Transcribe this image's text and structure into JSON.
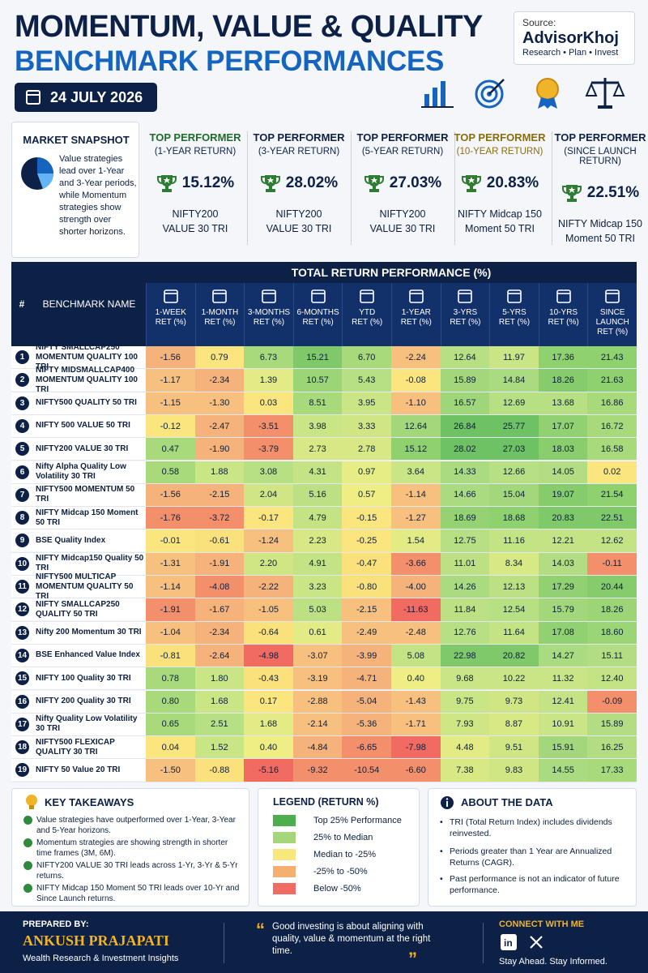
{
  "header": {
    "title_line1": "MOMENTUM, VALUE & QUALITY",
    "title_line2": "BENCHMARK PERFORMANCES",
    "date": "24 JULY 2026",
    "source_label": "Source:",
    "source_brand": "AdvisorKhoj",
    "source_tagline": "Research • Plan • Invest",
    "icons": [
      "bar-chart-icon",
      "target-icon",
      "medal-icon",
      "scales-icon"
    ]
  },
  "snapshot": {
    "title": "MARKET SNAPSHOT",
    "text": "Value strategies lead over 1-Year and 3-Year periods, while Momentum strategies show strength over shorter horizons."
  },
  "top_performers": [
    {
      "heading": "TOP PERFORMER",
      "period": "(1-YEAR RETURN)",
      "value": "15.12%",
      "name_line1": "NIFTY200",
      "name_line2": "VALUE 30 TRI"
    },
    {
      "heading": "TOP PERFORMER",
      "period": "(3-YEAR RETURN)",
      "value": "28.02%",
      "name_line1": "NIFTY200",
      "name_line2": "VALUE 30 TRI"
    },
    {
      "heading": "TOP PERFORMER",
      "period": "(5-YEAR RETURN)",
      "value": "27.03%",
      "name_line1": "NIFTY200",
      "name_line2": "VALUE 30 TRI"
    },
    {
      "heading": "TOP PERFORMER",
      "period": "(10-YEAR RETURN)",
      "value": "20.83%",
      "name_line1": "NIFTY Midcap 150",
      "name_line2": "Moment 50 TRI"
    },
    {
      "heading": "TOP PERFORMER",
      "period": "(SINCE LAUNCH RETURN)",
      "value": "22.51%",
      "name_line1": "NIFTY Midcap 150",
      "name_line2": "Moment 50 TRI"
    }
  ],
  "table": {
    "num_header": "#",
    "name_header": "BENCHMARK NAME",
    "group_header": "TOTAL RETURN PERFORMANCE (%)",
    "columns": [
      {
        "l1": "1-WEEK",
        "l2": "RET (%)",
        "icon": "calendar-icon"
      },
      {
        "l1": "1-MONTH",
        "l2": "RET (%)",
        "icon": "calendar-30-icon"
      },
      {
        "l1": "3-MONTHS",
        "l2": "RET (%)",
        "icon": "calendar-90-icon"
      },
      {
        "l1": "6-MONTHS",
        "l2": "RET (%)",
        "icon": "calendar-180-icon"
      },
      {
        "l1": "YTD",
        "l2": "RET (%)",
        "icon": "bar-chart-icon"
      },
      {
        "l1": "1-YEAR",
        "l2": "RET (%)",
        "icon": "calendar-icon"
      },
      {
        "l1": "3-YRS",
        "l2": "RET (%)",
        "icon": "bar-chart-icon"
      },
      {
        "l1": "5-YRS",
        "l2": "RET (%)",
        "icon": "trend-up-icon"
      },
      {
        "l1": "10-YRS",
        "l2": "RET (%)",
        "icon": "trophy-icon"
      },
      {
        "l1": "SINCE LAUNCH",
        "l2": "RET (%)",
        "icon": "rocket-icon"
      }
    ],
    "rows": [
      {
        "n": "1",
        "name": "NIFTY SMALLCAP250 MOMENTUM QUALITY 100 TRI",
        "v": [
          "-1.56",
          "0.79",
          "6.73",
          "15.21",
          "6.70",
          "-2.24",
          "12.64",
          "11.97",
          "17.36",
          "21.43"
        ],
        "c": [
          "#f5b27a",
          "#fae57f",
          "#a8d97a",
          "#7fc96b",
          "#a8d97a",
          "#f7c07e",
          "#b7df84",
          "#c9e585",
          "#8fd06f",
          "#8fd06f"
        ]
      },
      {
        "n": "2",
        "name": "NIFTY MIDSMALLCAP400 MOMENTUM QUALITY 100 TRI",
        "v": [
          "-1.17",
          "-2.34",
          "1.39",
          "10.57",
          "5.43",
          "-0.08",
          "15.89",
          "14.84",
          "18.26",
          "21.63"
        ],
        "c": [
          "#f7c07e",
          "#f5b27a",
          "#e3ec84",
          "#9bd576",
          "#b7df84",
          "#fae57f",
          "#a4d77c",
          "#aadb80",
          "#86cc6c",
          "#8fd06f"
        ]
      },
      {
        "n": "3",
        "name": "NIFTY500 QUALITY 50 TRI",
        "v": [
          "-1.15",
          "-1.30",
          "0.03",
          "8.51",
          "3.95",
          "-1.10",
          "16.57",
          "12.69",
          "13.68",
          "16.86"
        ],
        "c": [
          "#f7c07e",
          "#f7c07e",
          "#fae57f",
          "#a8d97a",
          "#c9e585",
          "#f7c07e",
          "#a0d67a",
          "#b7df84",
          "#b7df84",
          "#a8d97a"
        ]
      },
      {
        "n": "4",
        "name": "NIFTY 500 VALUE 50 TRI",
        "v": [
          "-0.12",
          "-2.47",
          "-3.51",
          "3.98",
          "3.33",
          "12.64",
          "26.84",
          "25.77",
          "17.07",
          "16.72"
        ],
        "c": [
          "#fae57f",
          "#f5b27a",
          "#f48f6b",
          "#c9e585",
          "#d0e685",
          "#a4d77c",
          "#6fc263",
          "#6fc263",
          "#92d172",
          "#a8d97a"
        ]
      },
      {
        "n": "5",
        "name": "NIFTY200 VALUE 30 TRI",
        "v": [
          "0.47",
          "-1.90",
          "-3.79",
          "2.73",
          "2.78",
          "15.12",
          "28.02",
          "27.03",
          "18.03",
          "16.58"
        ],
        "c": [
          "#a8d97a",
          "#f5b27a",
          "#f48f6b",
          "#d7e885",
          "#d7e885",
          "#8fd06f",
          "#6fc263",
          "#6fc263",
          "#8acd6d",
          "#a8d97a"
        ]
      },
      {
        "n": "6",
        "name": "Nifty Alpha Quality Low Volatility 30 TRI",
        "v": [
          "0.58",
          "1.88",
          "3.08",
          "4.31",
          "0.97",
          "3.64",
          "14.33",
          "12.66",
          "14.05",
          "0.02"
        ],
        "c": [
          "#a8d97a",
          "#c9e585",
          "#b7df84",
          "#c3e385",
          "#e6ed84",
          "#c9e585",
          "#aadb80",
          "#b7df84",
          "#b3dd82",
          "#fae57f"
        ]
      },
      {
        "n": "7",
        "name": "NIFTY500 MOMENTUM 50 TRI",
        "v": [
          "-1.56",
          "-2.15",
          "2.04",
          "5.16",
          "0.57",
          "-1.14",
          "14.66",
          "15.04",
          "19.07",
          "21.54"
        ],
        "c": [
          "#f5b27a",
          "#f5b27a",
          "#d0e685",
          "#bde084",
          "#eeee84",
          "#f7c07e",
          "#aadb80",
          "#a4d77c",
          "#86cc6c",
          "#8fd06f"
        ]
      },
      {
        "n": "8",
        "name": "NIFTY Midcap 150 Moment 50 TRI",
        "v": [
          "-1.76",
          "-3.72",
          "-0.17",
          "4.79",
          "-0.15",
          "-1.27",
          "18.69",
          "18.68",
          "20.83",
          "22.51"
        ],
        "c": [
          "#f48f6b",
          "#f48f6b",
          "#fae57f",
          "#c3e385",
          "#fae57f",
          "#f7c07e",
          "#94d274",
          "#8fd06f",
          "#7fc96b",
          "#7fc96b"
        ]
      },
      {
        "n": "9",
        "name": "BSE Quality Index",
        "v": [
          "-0.01",
          "-0.61",
          "-1.24",
          "2.23",
          "-0.25",
          "1.54",
          "12.75",
          "11.16",
          "12.21",
          "12.62"
        ],
        "c": [
          "#fae57f",
          "#fbe17c",
          "#f7c07e",
          "#d7e885",
          "#fae57f",
          "#e3ec84",
          "#b7df84",
          "#c3e385",
          "#c3e385",
          "#c3e385"
        ]
      },
      {
        "n": "10",
        "name": "NIFTY Midcap150 Quality 50 TRI",
        "v": [
          "-1.31",
          "-1.91",
          "2.20",
          "4.91",
          "-0.47",
          "-3.66",
          "11.01",
          "8.34",
          "14.03",
          "-0.11"
        ],
        "c": [
          "#f7c07e",
          "#f5b27a",
          "#d0e685",
          "#c3e385",
          "#fbe17c",
          "#f48f6b",
          "#bde084",
          "#d7e885",
          "#b3dd82",
          "#f48f6b"
        ]
      },
      {
        "n": "11",
        "name": "NIFTY500 MULTICAP MOMENTUM QUALITY 50 TRI",
        "v": [
          "-1.14",
          "-4.08",
          "-2.22",
          "3.23",
          "-0.80",
          "-4.00",
          "14.26",
          "12.13",
          "17.29",
          "20.44"
        ],
        "c": [
          "#f7c07e",
          "#f48f6b",
          "#f5b27a",
          "#c9e585",
          "#fbe17c",
          "#f5b27a",
          "#aadb80",
          "#bde084",
          "#92d172",
          "#86cc6c"
        ]
      },
      {
        "n": "12",
        "name": "NIFTY SMALLCAP250 QUALITY 50 TRI",
        "v": [
          "-1.91",
          "-1.67",
          "-1.05",
          "5.03",
          "-2.15",
          "-11.63",
          "11.84",
          "12.54",
          "15.79",
          "18.26"
        ],
        "c": [
          "#f48f6b",
          "#f5b27a",
          "#f7c07e",
          "#bde084",
          "#f7c07e",
          "#f26b62",
          "#bde084",
          "#b7df84",
          "#a4d77c",
          "#9bd576"
        ]
      },
      {
        "n": "13",
        "name": "Nifty 200 Momentum 30 TRI",
        "v": [
          "-1.04",
          "-2.34",
          "-0.64",
          "0.61",
          "-2.49",
          "-2.48",
          "12.76",
          "11.64",
          "17.08",
          "18.60"
        ],
        "c": [
          "#f7c07e",
          "#f5b27a",
          "#fbe17c",
          "#e3ec84",
          "#f7c07e",
          "#f7c07e",
          "#b7df84",
          "#c3e385",
          "#92d172",
          "#9bd576"
        ]
      },
      {
        "n": "14",
        "name": "BSE Enhanced Value Index",
        "v": [
          "-0.81",
          "-2.64",
          "-4.98",
          "-3.07",
          "-3.99",
          "5.08",
          "22.98",
          "20.82",
          "14.27",
          "15.11"
        ],
        "c": [
          "#fbe17c",
          "#f5b27a",
          "#f26b62",
          "#f7c07e",
          "#f5b27a",
          "#c3e385",
          "#7fc96b",
          "#7fc96b",
          "#aadb80",
          "#b3dd82"
        ]
      },
      {
        "n": "15",
        "name": "NIFTY 100 Quality 30 TRI",
        "v": [
          "0.78",
          "1.80",
          "-0.43",
          "-3.19",
          "-4.71",
          "0.40",
          "9.68",
          "10.22",
          "11.32",
          "12.40"
        ],
        "c": [
          "#a8d97a",
          "#c9e585",
          "#fbe17c",
          "#f7c07e",
          "#f5b27a",
          "#eeee84",
          "#c9e585",
          "#c9e585",
          "#c9e585",
          "#c3e385"
        ]
      },
      {
        "n": "16",
        "name": "NIFTY 200 Quality 30 TRI",
        "v": [
          "0.80",
          "1.68",
          "0.17",
          "-2.88",
          "-5.04",
          "-1.43",
          "9.75",
          "9.73",
          "12.41",
          "-0.09"
        ],
        "c": [
          "#a8d97a",
          "#c9e585",
          "#fae57f",
          "#f7c07e",
          "#f5b27a",
          "#f7c07e",
          "#c9e585",
          "#d0e685",
          "#c3e385",
          "#f48f6b"
        ]
      },
      {
        "n": "17",
        "name": "Nifty Quality Low Volatility 30 TRI",
        "v": [
          "0.65",
          "2.51",
          "1.68",
          "-2.14",
          "-5.36",
          "-1.71",
          "7.93",
          "8.87",
          "10.91",
          "15.89"
        ],
        "c": [
          "#a8d97a",
          "#b7df84",
          "#e3ec84",
          "#f7c07e",
          "#f5b27a",
          "#f7c07e",
          "#d0e685",
          "#d7e885",
          "#c9e585",
          "#b3dd82"
        ]
      },
      {
        "n": "18",
        "name": "NIFTY500 FLEXICAP QUALITY 30 TRI",
        "v": [
          "0.04",
          "1.52",
          "0.40",
          "-4.84",
          "-6.65",
          "-7.98",
          "4.48",
          "9.51",
          "15.91",
          "16.25"
        ],
        "c": [
          "#fae57f",
          "#c9e585",
          "#eeee84",
          "#f5b27a",
          "#f48f6b",
          "#f26b62",
          "#e3ec84",
          "#d0e685",
          "#a4d77c",
          "#b3dd82"
        ]
      },
      {
        "n": "19",
        "name": "NIFTY 50 Value 20 TRI",
        "v": [
          "-1.50",
          "-0.88",
          "-5.16",
          "-9.32",
          "-10.54",
          "-6.60",
          "7.38",
          "9.83",
          "14.55",
          "17.33"
        ],
        "c": [
          "#f7c07e",
          "#fbe17c",
          "#f26b62",
          "#f48f6b",
          "#f48f6b",
          "#f48f6b",
          "#d7e885",
          "#d0e685",
          "#aadb80",
          "#a8d97a"
        ]
      }
    ]
  },
  "takeaways": {
    "title": "KEY TAKEAWAYS",
    "items": [
      "Value strategies have outperformed over 1-Year, 3-Year and 5-Year horizons.",
      "Momentum strategies are showing strength in shorter time frames (3M, 6M).",
      "NIFTY200 VALUE 30 TRI leads across 1-Yr, 3-Yr & 5-Yr returns.",
      "NIFTY Midcap 150 Moment 50 TRI leads over 10-Yr and Since Launch returns."
    ]
  },
  "legend": {
    "title": "LEGEND (RETURN %)",
    "items": [
      {
        "label": "Top 25% Performance",
        "color": "#4cae4c"
      },
      {
        "label": "25% to Median",
        "color": "#a5d67a"
      },
      {
        "label": "Median to -25%",
        "color": "#f7e87d"
      },
      {
        "label": "-25% to -50%",
        "color": "#f5b070"
      },
      {
        "label": "Below -50%",
        "color": "#f26b62"
      }
    ]
  },
  "about": {
    "title": "ABOUT THE DATA",
    "items": [
      "TRI (Total Return Index) includes dividends reinvested.",
      "Periods greater than 1 Year are Annualized Returns (CAGR).",
      "Past performance is not an indicator of future performance."
    ]
  },
  "footer": {
    "prepared_by": "PREPARED BY:",
    "author": "ANKUSH PRAJAPATI",
    "author_tagline": "Wealth Research & Investment Insights",
    "quote": "Good investing is about aligning with quality, value & momentum at the right time.",
    "connect": "CONNECT WITH ME",
    "social_icons": [
      "linkedin-icon",
      "x-icon"
    ],
    "connect_tagline": "Stay Ahead. Stay Informed."
  },
  "colors": {
    "navy": "#0d2147",
    "accent_blue": "#1565c0",
    "trophy_green": "#2e7d32",
    "gold": "#f0b429"
  }
}
